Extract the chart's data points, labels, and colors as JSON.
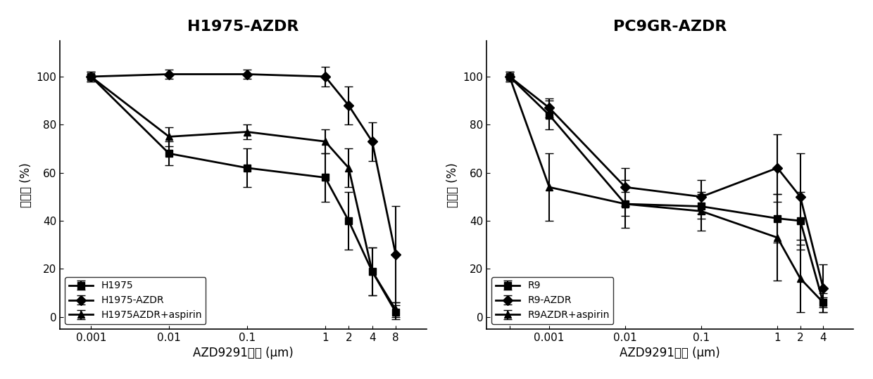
{
  "left": {
    "title": "H1975-AZDR",
    "xlabel": "AZD9291浓度 (μm)",
    "ylabel": "存活率 (%)",
    "x_ticks": [
      0.001,
      0.01,
      0.1,
      1,
      2,
      4,
      8
    ],
    "x_tick_labels": [
      "0.001",
      "0.01",
      "0.1",
      "1",
      "2",
      "4",
      "8"
    ],
    "xlim": [
      0.0004,
      20
    ],
    "ylim": [
      -5,
      115
    ],
    "yticks": [
      0,
      20,
      40,
      60,
      80,
      100
    ],
    "series": [
      {
        "label": "H1975",
        "marker": "s",
        "y": [
          100,
          68,
          62,
          58,
          40,
          19,
          2
        ],
        "yerr": [
          2,
          5,
          8,
          10,
          12,
          10,
          3
        ]
      },
      {
        "label": "H1975-AZDR",
        "marker": "D",
        "y": [
          100,
          101,
          101,
          100,
          88,
          73,
          26
        ],
        "yerr": [
          1,
          2,
          2,
          4,
          8,
          8,
          20
        ]
      },
      {
        "label": "H1975AZDR+aspirin",
        "marker": "^",
        "y": [
          100,
          75,
          77,
          73,
          62,
          19,
          3
        ],
        "yerr": [
          2,
          4,
          3,
          5,
          8,
          10,
          3
        ]
      }
    ]
  },
  "right": {
    "title": "PC9GR-AZDR",
    "xlabel": "AZD9291浓度 (μm)",
    "ylabel": "存活率 (%)",
    "x_ticks": [
      0.0003,
      0.001,
      0.01,
      0.1,
      1,
      2,
      4
    ],
    "x_tick_labels": [
      "",
      "0.001",
      "0.01",
      "0.1",
      "1",
      "2",
      "4"
    ],
    "xlim": [
      0.00015,
      10
    ],
    "ylim": [
      -5,
      115
    ],
    "yticks": [
      0,
      20,
      40,
      60,
      80,
      100
    ],
    "series": [
      {
        "label": "R9",
        "marker": "s",
        "y": [
          100,
          84,
          47,
          46,
          41,
          40,
          6
        ],
        "yerr": [
          1,
          6,
          5,
          5,
          10,
          12,
          2
        ]
      },
      {
        "label": "R9-AZDR",
        "marker": "D",
        "y": [
          100,
          87,
          54,
          50,
          62,
          50,
          12
        ],
        "yerr": [
          2,
          4,
          8,
          7,
          14,
          18,
          10
        ]
      },
      {
        "label": "R9AZDR+aspirin",
        "marker": "^",
        "y": [
          100,
          54,
          47,
          44,
          33,
          16,
          6
        ],
        "yerr": [
          2,
          14,
          10,
          8,
          18,
          14,
          4
        ]
      }
    ]
  },
  "line_color": "#000000",
  "marker_size": 7,
  "linewidth": 2.0,
  "capsize": 4,
  "elinewidth": 1.5,
  "legend_fontsize": 10,
  "title_fontsize": 16,
  "axis_fontsize": 12,
  "tick_fontsize": 11
}
